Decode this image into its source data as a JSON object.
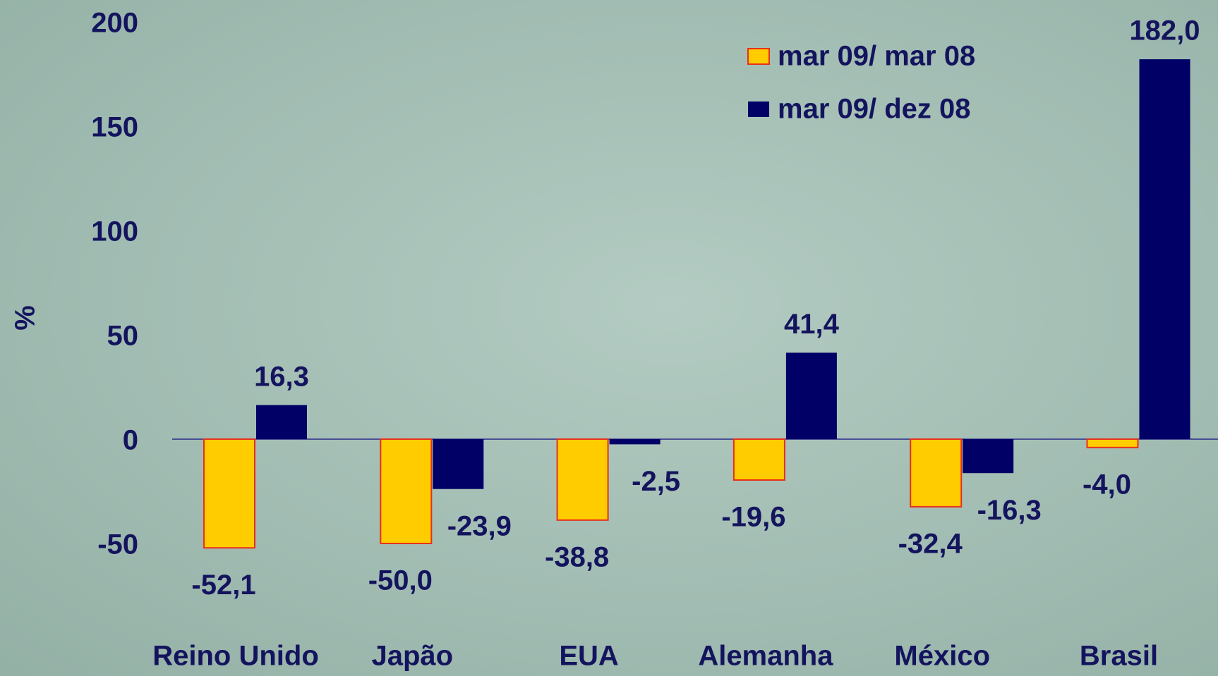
{
  "chart_data": {
    "type": "bar",
    "y_label": "%",
    "categories": [
      "Reino Unido",
      "Japão",
      "EUA",
      "Alemanha",
      "México",
      "Brasil"
    ],
    "series": [
      {
        "name": "mar 09/ mar 08",
        "color": "#ffcc00",
        "edge_color": "#e8301c",
        "values": [
          -52.1,
          -50.0,
          -38.8,
          -19.6,
          -32.4,
          -4.0
        ],
        "value_labels": [
          "-52,1",
          "-50,0",
          "-38,8",
          "-19,6",
          "-32,4",
          "-4,0"
        ]
      },
      {
        "name": "mar 09/ dez 08",
        "color": "#000066",
        "values": [
          16.3,
          -23.9,
          -2.5,
          41.4,
          -16.3,
          182.0
        ],
        "value_labels": [
          "16,3",
          "-23,9",
          "-2,5",
          "41,4",
          "-16,3",
          "182,0"
        ]
      }
    ],
    "ylim": [
      -50,
      200
    ],
    "yticks": [
      -50,
      0,
      50,
      100,
      150,
      200
    ],
    "legend": "top-right"
  }
}
